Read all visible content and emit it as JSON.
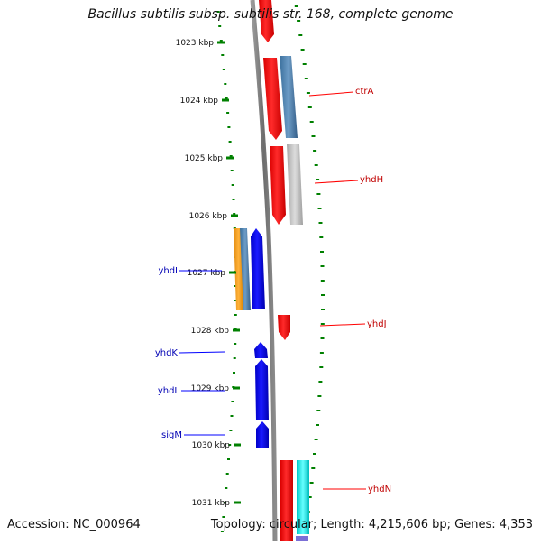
{
  "title": "Bacillus subtilis subsp. subtilis str. 168, complete genome",
  "footer": {
    "accession": "Accession: NC_000964",
    "topology": "Topology: circular; Length: 4,215,606 bp; Genes: 4,353"
  },
  "colors": {
    "forward_gene": "#ff0000",
    "reverse_gene": "#0000ff",
    "steel_gene": "#4682b4",
    "grey_gene": "#bdbdbd",
    "orange_gene": "#f39c1b",
    "cyan_gene": "#00e5e5",
    "backbone": "#808080",
    "tick": "#008000"
  },
  "ticks": [
    {
      "label": "1023 kbp"
    },
    {
      "label": "1024 kbp"
    },
    {
      "label": "1025 kbp"
    },
    {
      "label": "1026 kbp"
    },
    {
      "label": "1027 kbp"
    },
    {
      "label": "1028 kbp"
    },
    {
      "label": "1029 kbp"
    },
    {
      "label": "1030 kbp"
    },
    {
      "label": "1031 kbp"
    }
  ],
  "genes_forward": [
    {
      "label": "ctrA"
    },
    {
      "label": "yhdH"
    },
    {
      "label": "yhdJ"
    },
    {
      "label": "yhdN"
    }
  ],
  "genes_reverse": [
    {
      "label": "yhdI"
    },
    {
      "label": "yhdK"
    },
    {
      "label": "yhdL"
    },
    {
      "label": "sigM"
    }
  ]
}
